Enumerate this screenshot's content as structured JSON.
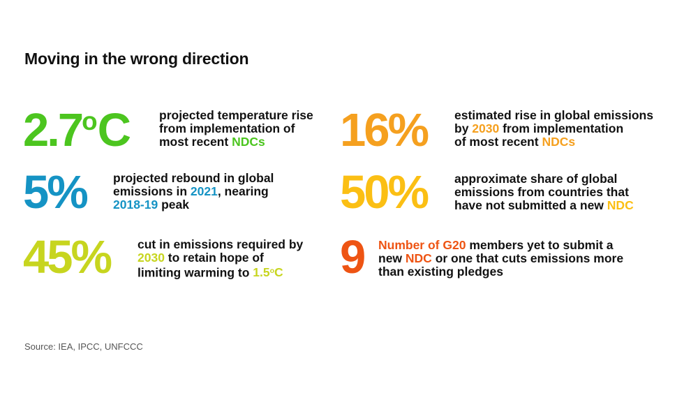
{
  "title": "Moving in the wrong direction",
  "colors": {
    "green": "#4cc51f",
    "blue": "#1593c4",
    "lime": "#c7d51f",
    "orange": "#f5a01f",
    "yellow": "#fbbf14",
    "red": "#ee5413",
    "text": "#111111"
  },
  "stats": {
    "temp": {
      "value": "2.7",
      "sup": "o",
      "unit": "C",
      "l1": "projected temperature rise",
      "l2": "from implementation of",
      "l3_pre": "most recent ",
      "l3_hl": "NDCs"
    },
    "rebound": {
      "value": "5%",
      "l1": "projected rebound in global",
      "l2_pre": "emissions in ",
      "l2_hl": "2021",
      "l2_post": ", nearing",
      "l3_hl": "2018-19",
      "l3_post": " peak"
    },
    "cut": {
      "value": "45%",
      "l1": "cut in emissions required by",
      "l2_hl": "2030",
      "l2_post": " to retain hope of",
      "l3_pre": "limiting warming to ",
      "l3_hl": "1.5",
      "l3_sup": "o",
      "l3_unit": "C"
    },
    "rise": {
      "value": "16%",
      "l1": "estimated rise in global emissions",
      "l2_pre": "by ",
      "l2_hl": "2030",
      "l2_post": " from implementation",
      "l3_pre": "of most recent ",
      "l3_hl": "NDCs"
    },
    "share": {
      "value": "50%",
      "l1": "approximate share of global",
      "l2": "emissions from countries that",
      "l3_pre": "have not submitted a new ",
      "l3_hl": "NDC"
    },
    "g20": {
      "value": "9",
      "l1_hl": "Number of G20",
      "l1_post": " members yet to submit a",
      "l2_pre": "new ",
      "l2_hl": "NDC",
      "l2_post": " or one that cuts emissions more",
      "l3": "than existing pledges"
    }
  },
  "source": "Source: IEA, IPCC, UNFCCC"
}
